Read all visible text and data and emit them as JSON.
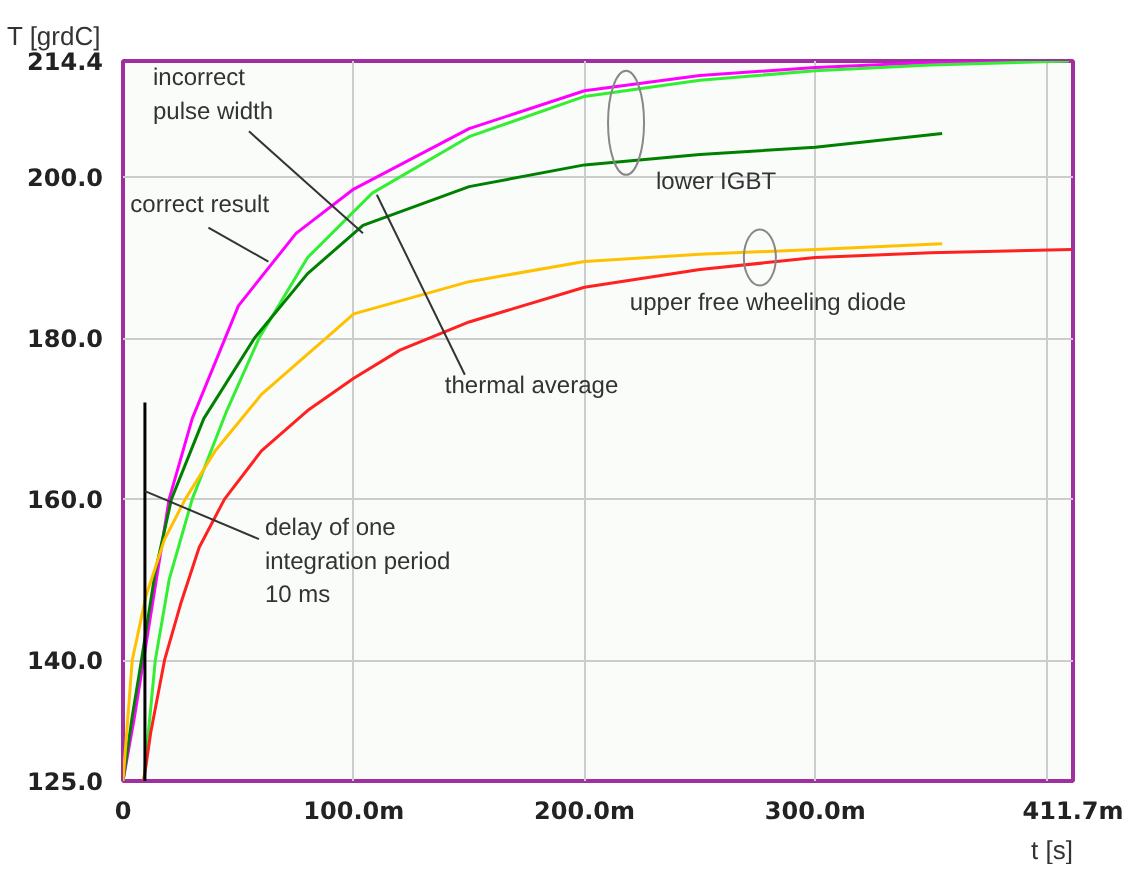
{
  "chart_data": {
    "type": "line",
    "xlabel": "t [s]",
    "ylabel": "T [grdC]",
    "xlim": [
      0,
      411.7
    ],
    "ylim": [
      125,
      214.4
    ],
    "xticks": [
      {
        "value": 0,
        "label": "0"
      },
      {
        "value": 100,
        "label": "100.0m"
      },
      {
        "value": 200,
        "label": "200.0m"
      },
      {
        "value": 300,
        "label": "300.0m"
      },
      {
        "value": 400,
        "label": null
      },
      {
        "value": 411.7,
        "label": "411.7m"
      }
    ],
    "yticks": [
      {
        "value": 125,
        "label": "125.0"
      },
      {
        "value": 140,
        "label": "140.0"
      },
      {
        "value": 160,
        "label": "160.0"
      },
      {
        "value": 180,
        "label": "180.0"
      },
      {
        "value": 200,
        "label": "200.0"
      },
      {
        "value": 214.4,
        "label": "214.4"
      }
    ],
    "grid": true,
    "line_style": "solid",
    "series": [
      {
        "color": "#ff00ff",
        "x": [
          0,
          5,
          10,
          20,
          30,
          50,
          75,
          100,
          150,
          200,
          250,
          300,
          350,
          390,
          410
        ],
        "values": [
          125,
          133,
          142,
          160,
          170,
          184,
          193,
          198.5,
          206,
          210.7,
          212.6,
          213.6,
          214.2,
          214.4,
          214.4
        ]
      },
      {
        "color": "#33ee33",
        "x": [
          9,
          14,
          20,
          30,
          45,
          59,
          80,
          108,
          150,
          200,
          250,
          300,
          350,
          410
        ],
        "values": [
          125,
          140,
          150,
          160,
          171,
          180,
          190,
          198,
          205,
          210,
          212,
          213.2,
          213.9,
          214.4
        ]
      },
      {
        "color": "#008000",
        "x": [
          0,
          4,
          8,
          14,
          21,
          35,
          57,
          80,
          104,
          150,
          200,
          250,
          300,
          355
        ],
        "values": [
          125,
          133,
          140,
          151,
          160,
          170,
          180,
          188,
          194,
          198.8,
          201.5,
          202.8,
          203.7,
          205.4
        ]
      },
      {
        "color": "#ffc000",
        "x": [
          0,
          4,
          10,
          18,
          27,
          40,
          60,
          88,
          100,
          150,
          200,
          250,
          300,
          355
        ],
        "values": [
          125,
          140,
          148,
          155,
          160,
          166,
          173,
          180,
          183,
          187,
          189.5,
          190.4,
          191,
          191.7
        ]
      },
      {
        "color": "#ff2020",
        "x": [
          9,
          12,
          18,
          25,
          33,
          44,
          60,
          80,
          100,
          120,
          150,
          200,
          250,
          300,
          350,
          411
        ],
        "values": [
          125,
          131,
          140,
          147,
          154,
          160,
          166,
          171,
          175,
          178.5,
          182,
          186.3,
          188.5,
          190,
          190.6,
          191
        ]
      },
      {
        "color": "#000000",
        "x": [
          9.5,
          9.5
        ],
        "values": [
          125,
          172
        ]
      }
    ],
    "annotations": [
      {
        "text": "incorrect\npulse width",
        "x": 104,
        "y": 193
      },
      {
        "text": "correct result",
        "x": 63,
        "y": 189.5
      },
      {
        "text": "thermal average",
        "x": 110,
        "y": 197.8
      },
      {
        "text": "delay of one\nintegration period\n10 ms",
        "x": 9.5,
        "y": 161
      },
      {
        "text": "lower IGBT",
        "x": 218,
        "y": 202
      },
      {
        "text": "upper free wheeling diode",
        "x": 276,
        "y": 190
      }
    ]
  }
}
